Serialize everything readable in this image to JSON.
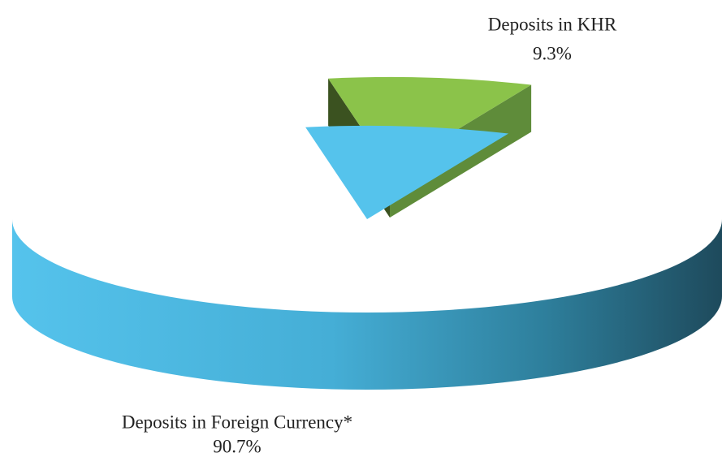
{
  "chart_data": {
    "type": "pie",
    "categories": [
      "Deposits in KHR",
      "Deposits in Foreign Currency*"
    ],
    "values": [
      9.3,
      90.7
    ],
    "value_labels": [
      "9.3%",
      "90.7%"
    ],
    "colors": [
      "#8bc34a",
      "#55c3ec"
    ]
  }
}
